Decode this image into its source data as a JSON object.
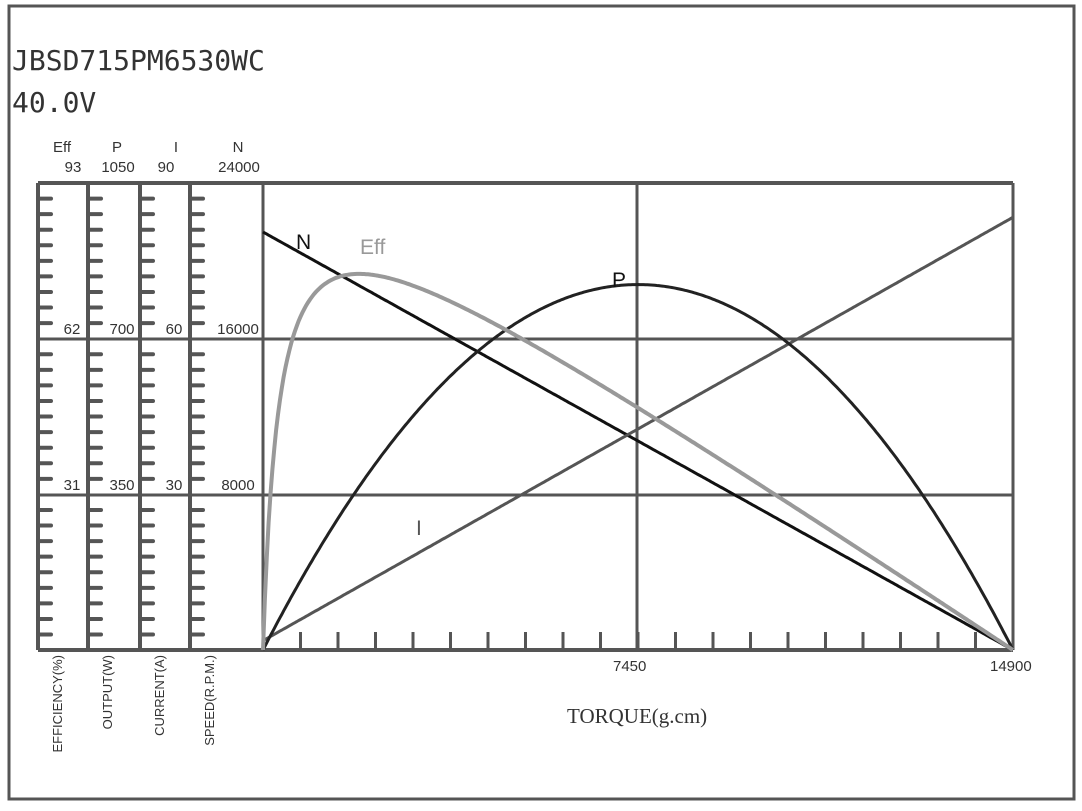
{
  "header": {
    "model": "JBSD715PM6530WC",
    "voltage": "40.0V"
  },
  "chart_data": {
    "type": "line",
    "xlabel": "TORQUE(g.cm)",
    "x_ticks": [
      "7450",
      "14900"
    ],
    "xlim": [
      0,
      14900
    ],
    "grid": true,
    "axes": [
      {
        "key": "Eff",
        "label": "EFFICIENCY(%)",
        "ticks": [
          "93",
          "62",
          "31"
        ],
        "max": 93
      },
      {
        "key": "P",
        "label": "OUTPUT(W)",
        "ticks": [
          "1050",
          "700",
          "350"
        ],
        "max": 1050
      },
      {
        "key": "I",
        "label": "CURRENT(A)",
        "ticks": [
          "90",
          "60",
          "30"
        ],
        "max": 90
      },
      {
        "key": "N",
        "label": "SPEED(R.P.M.)",
        "ticks": [
          "24000",
          "16000",
          "8000"
        ],
        "max": 24000
      }
    ],
    "x": [
      0,
      1490,
      2980,
      4470,
      5960,
      7450,
      8940,
      10430,
      11920,
      13410,
      14900
    ],
    "series": [
      {
        "name": "N",
        "axis": "N",
        "color": "#111111",
        "values": [
          21480,
          19332,
          17184,
          15036,
          12888,
          10740,
          8592,
          6444,
          4296,
          2148,
          0
        ]
      },
      {
        "name": "I",
        "axis": "I",
        "color": "#555555",
        "values": [
          1.8,
          9.96,
          18.12,
          26.28,
          34.44,
          42.6,
          50.76,
          58.92,
          67.08,
          75.24,
          83.4
        ]
      },
      {
        "name": "P",
        "axis": "P",
        "color": "#222222",
        "values": [
          0,
          295.8,
          525.9,
          690.3,
          788.9,
          821.7,
          788.9,
          690.3,
          525.9,
          295.8,
          0
        ]
      },
      {
        "name": "Eff",
        "axis": "Eff",
        "color": "#999999",
        "values": [
          0,
          74.2,
          72.6,
          65.7,
          57.3,
          48.2,
          38.9,
          29.3,
          19.6,
          9.8,
          0
        ]
      }
    ],
    "model": {
      "no_load_speed": 21480,
      "stall_torque": 14900,
      "no_load_current": 1.8,
      "stall_current": 83.4,
      "voltage": 40.0
    }
  }
}
